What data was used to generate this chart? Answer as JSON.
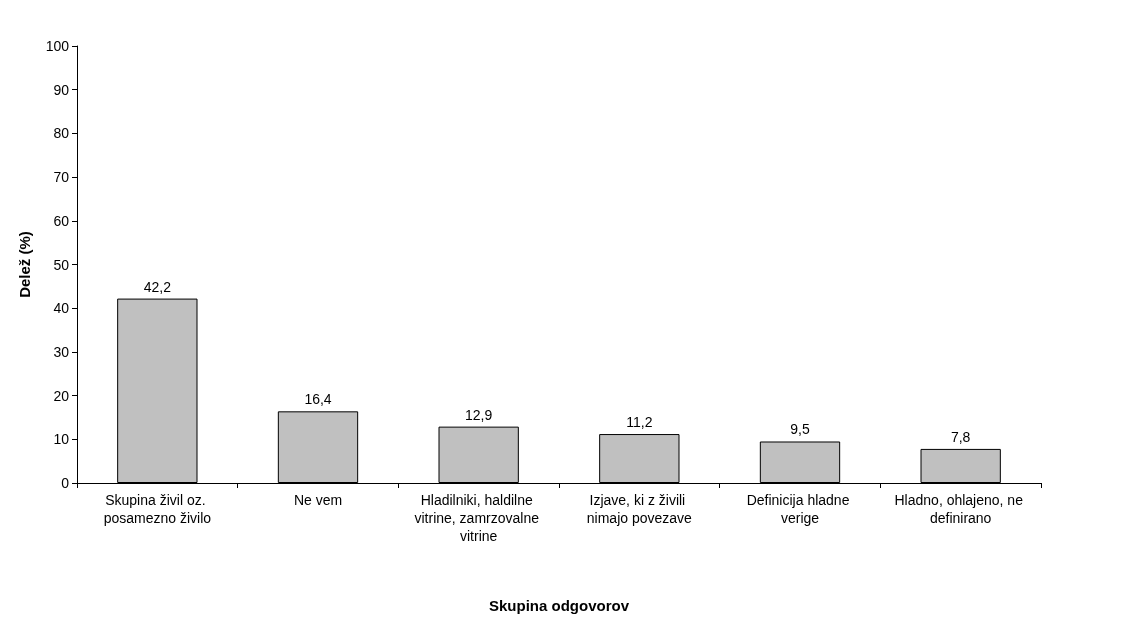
{
  "chart_data": {
    "type": "bar",
    "xlabel": "Skupina odgovorov",
    "ylabel": "Delež (%)",
    "categories": [
      "Skupina živil oz. posamezno živilo",
      "Ne vem",
      "Hladilniki, haldilne vitrine, zamrzovalne vitrine",
      "Izjave, ki z živili nimajo povezave",
      "Definicija hladne verige",
      "Hladno, ohlajeno, ne definirano"
    ],
    "values": [
      42.2,
      16.4,
      12.9,
      11.2,
      9.5,
      7.8
    ],
    "value_labels": [
      "42,2",
      "16,4",
      "12,9",
      "11,2",
      "9,5",
      "7,8"
    ],
    "color": "#c0c0c0",
    "ylim": [
      0,
      100
    ],
    "yticks": [
      0,
      10,
      20,
      30,
      40,
      50,
      60,
      70,
      80,
      90,
      100
    ],
    "grid": false
  }
}
